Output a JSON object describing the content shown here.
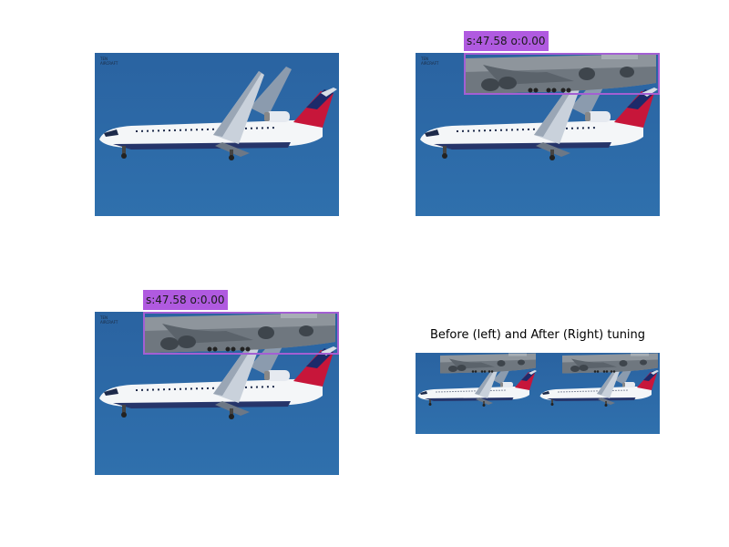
{
  "figure": {
    "panels": [
      {
        "name": "original-photo",
        "detection": null
      },
      {
        "name": "detection-before",
        "detection": {
          "label": "s:47.58 o:0.00"
        }
      },
      {
        "name": "detection-after",
        "detection": {
          "label": "s:47.58 o:0.00"
        }
      },
      {
        "name": "comparison-strip",
        "title": "Before (left) and After (Right) tuning"
      }
    ],
    "colors": {
      "sky": "#2c6aa8",
      "box": "#a35fd3",
      "label_bg": "#b05ae0"
    }
  }
}
